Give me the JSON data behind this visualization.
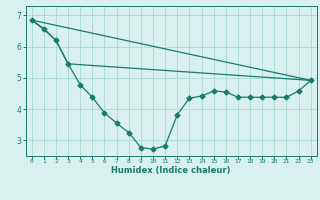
{
  "xlabel": "Humidex (Indice chaleur)",
  "bg_color": "#d8f0ee",
  "grid_color": "#b0ddd8",
  "line_color": "#1a7a6e",
  "xlim": [
    -0.5,
    23.5
  ],
  "ylim": [
    2.5,
    7.3
  ],
  "yticks": [
    3,
    4,
    5,
    6,
    7
  ],
  "xticks": [
    0,
    1,
    2,
    3,
    4,
    5,
    6,
    7,
    8,
    9,
    10,
    11,
    12,
    13,
    14,
    15,
    16,
    17,
    18,
    19,
    20,
    21,
    22,
    23
  ],
  "line1_x": [
    0,
    1,
    2,
    3,
    4,
    5,
    6,
    7,
    8,
    9,
    10,
    11,
    12,
    13,
    14,
    15,
    16,
    17,
    18,
    19,
    20,
    21,
    22,
    23
  ],
  "line1_y": [
    6.85,
    6.55,
    6.2,
    5.45,
    4.78,
    4.38,
    3.88,
    3.55,
    3.25,
    2.77,
    2.72,
    2.82,
    3.82,
    4.35,
    4.42,
    4.58,
    4.55,
    4.38,
    4.38,
    4.38,
    4.38,
    4.38,
    4.58,
    4.92
  ],
  "line2_x": [
    0,
    1,
    2,
    3,
    23
  ],
  "line2_y": [
    6.85,
    6.58,
    6.2,
    5.45,
    4.92
  ],
  "line3_x": [
    0,
    23
  ],
  "line3_y": [
    6.85,
    4.92
  ]
}
